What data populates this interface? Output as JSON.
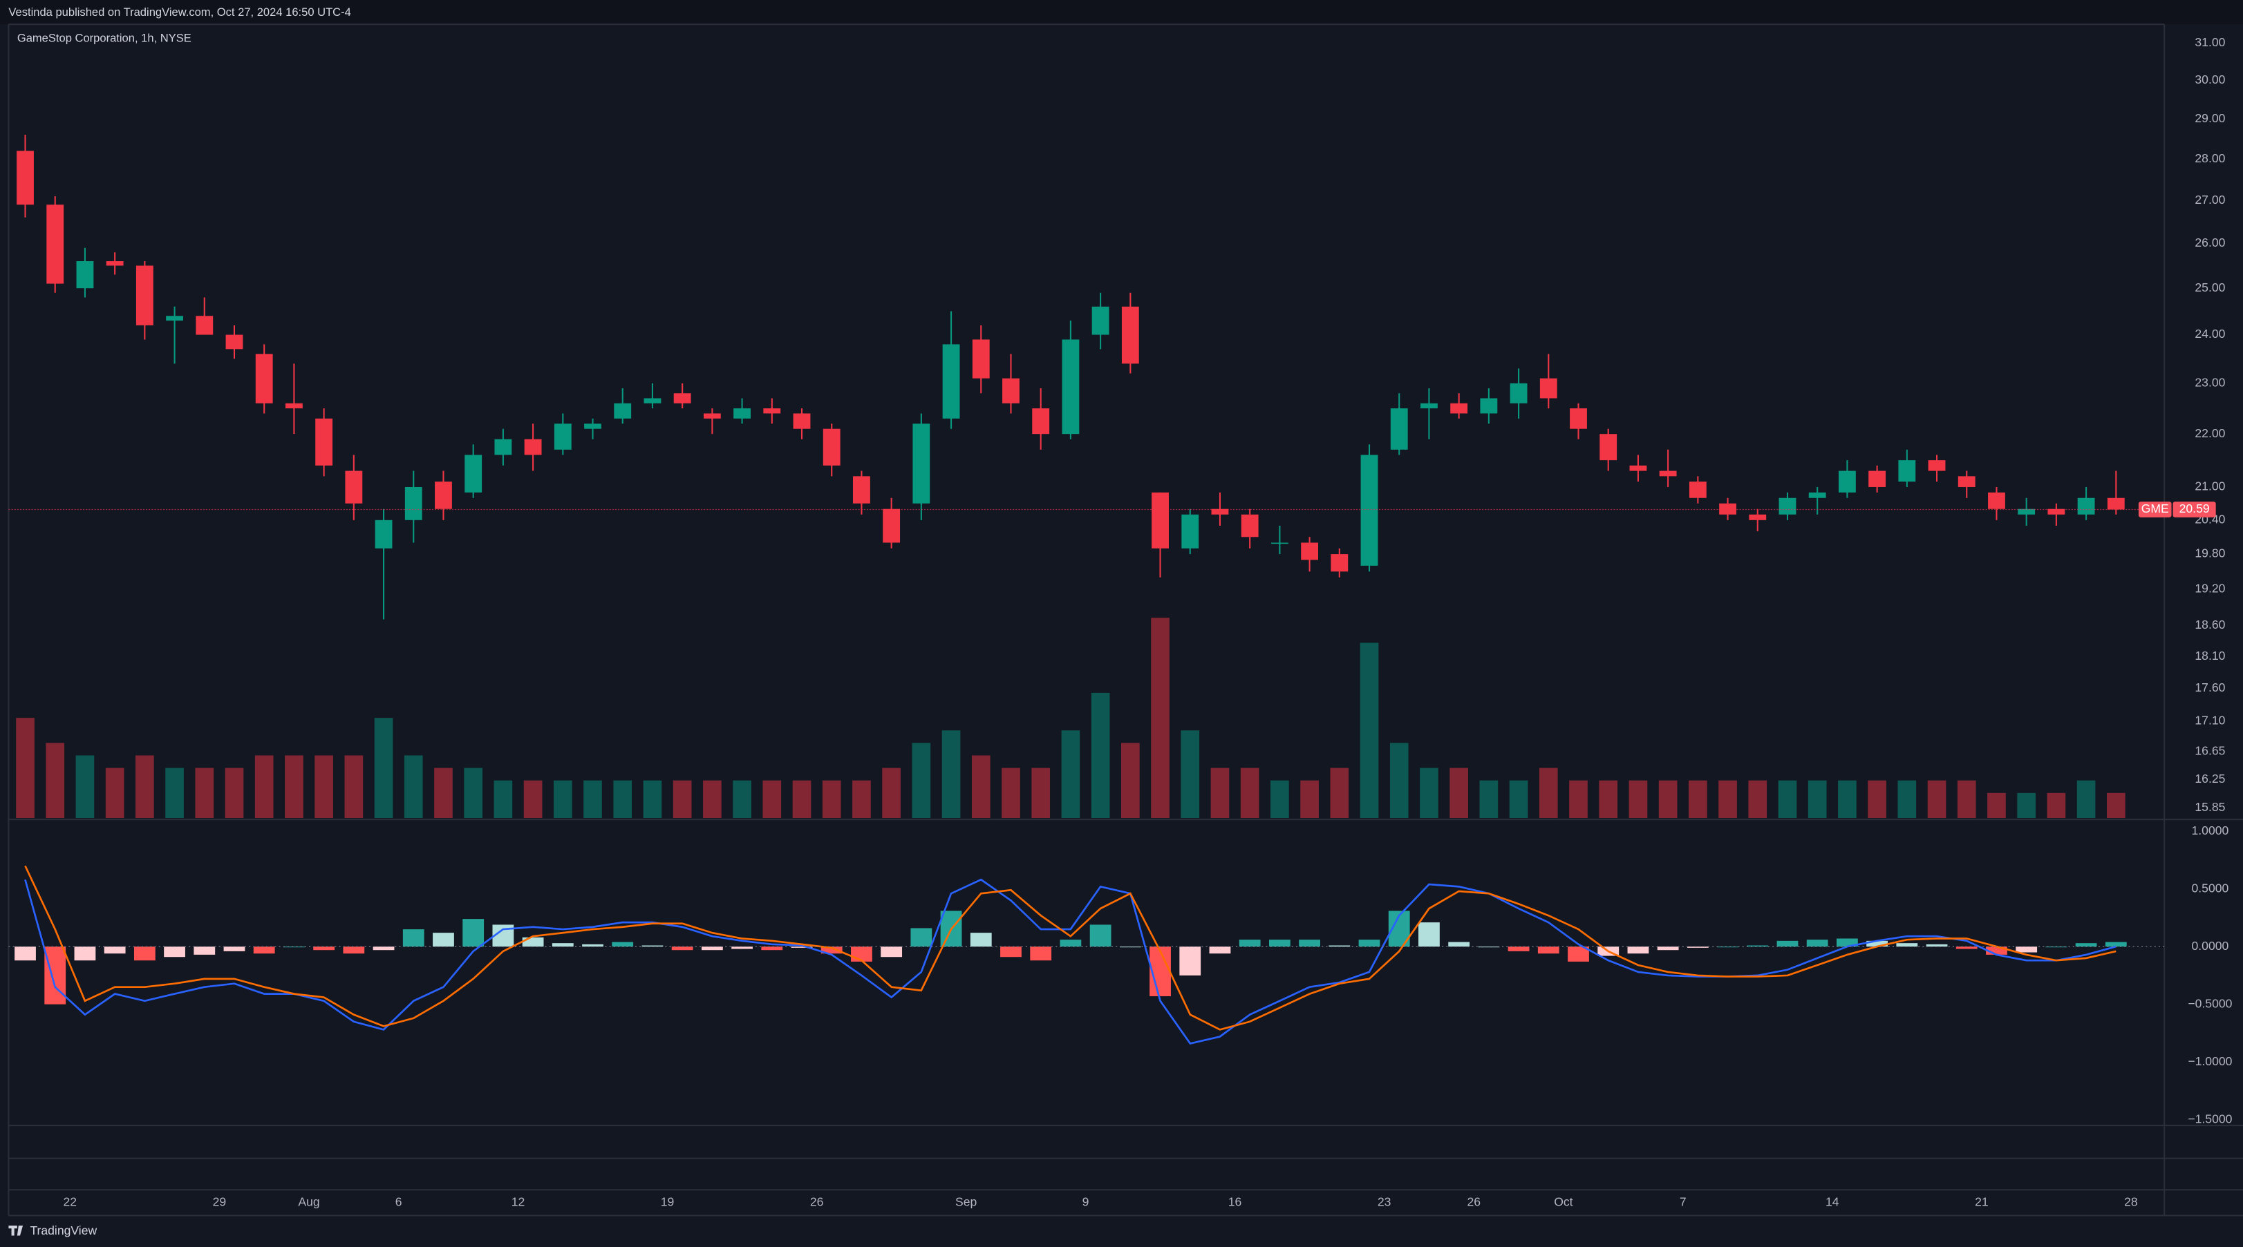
{
  "published": "Vestinda published on TradingView.com, Oct 27, 2024 16:50 UTC-4",
  "footer": "TradingView",
  "chart_data": {
    "type": "candlestick",
    "title": "GameStop Corporation, 1h, NYSE",
    "symbol": "GME",
    "log_scale": true,
    "grid": false,
    "up_color": "#089981",
    "down_color": "#f23645",
    "categories": [
      null,
      null,
      "22",
      null,
      null,
      null,
      null,
      "29",
      null,
      null,
      "Aug",
      null,
      null,
      "6",
      null,
      null,
      null,
      "12",
      null,
      null,
      null,
      null,
      "19",
      null,
      null,
      null,
      null,
      "26",
      null,
      null,
      null,
      null,
      "Sep",
      null,
      null,
      null,
      "9",
      null,
      null,
      null,
      null,
      "16",
      null,
      null,
      null,
      null,
      "23",
      null,
      null,
      "26",
      null,
      null,
      "Oct",
      null,
      null,
      null,
      "7",
      null,
      null,
      null,
      null,
      "14",
      null,
      null,
      null,
      null,
      "21",
      null,
      null,
      null,
      null,
      "28"
    ],
    "open": [
      28.2,
      26.9,
      25.0,
      25.6,
      25.5,
      24.3,
      24.4,
      24.0,
      23.6,
      22.6,
      22.3,
      21.3,
      19.9,
      20.4,
      21.1,
      20.9,
      21.6,
      21.9,
      21.7,
      22.1,
      22.3,
      22.6,
      22.8,
      22.4,
      22.3,
      22.5,
      22.4,
      22.1,
      21.2,
      20.6,
      20.7,
      22.3,
      23.9,
      23.1,
      22.5,
      22.0,
      24.0,
      24.6,
      20.9,
      19.9,
      20.6,
      20.5,
      20.0,
      20.0,
      19.8,
      19.6,
      21.7,
      22.5,
      22.6,
      22.4,
      22.6,
      23.1,
      22.5,
      22.0,
      21.4,
      21.3,
      21.1,
      20.7,
      20.5,
      20.5,
      20.8,
      20.9,
      21.3,
      21.1,
      21.5,
      21.2,
      20.9,
      20.5,
      20.6,
      20.5,
      20.8,
      null
    ],
    "high": [
      28.6,
      27.1,
      25.9,
      25.8,
      25.6,
      24.6,
      24.8,
      24.2,
      23.8,
      23.4,
      22.5,
      21.6,
      20.6,
      21.3,
      21.3,
      21.8,
      22.1,
      22.2,
      22.4,
      22.3,
      22.9,
      23.0,
      23.0,
      22.5,
      22.7,
      22.7,
      22.5,
      22.2,
      21.3,
      20.8,
      22.4,
      24.5,
      24.2,
      23.6,
      22.9,
      24.3,
      24.9,
      24.9,
      20.9,
      20.6,
      20.9,
      20.6,
      20.3,
      20.1,
      19.9,
      21.8,
      22.8,
      22.9,
      22.8,
      22.9,
      23.3,
      23.6,
      22.6,
      22.1,
      21.6,
      21.7,
      21.2,
      20.8,
      20.6,
      20.9,
      21.0,
      21.5,
      21.4,
      21.7,
      21.6,
      21.3,
      21.0,
      20.8,
      20.7,
      21.0,
      21.3,
      null
    ],
    "low": [
      26.6,
      24.9,
      24.8,
      25.3,
      23.9,
      23.4,
      24.1,
      23.5,
      22.4,
      22.0,
      21.2,
      20.4,
      18.7,
      20.0,
      20.4,
      20.8,
      21.4,
      21.3,
      21.6,
      21.9,
      22.2,
      22.5,
      22.5,
      22.0,
      22.2,
      22.2,
      21.9,
      21.2,
      20.5,
      19.9,
      20.4,
      22.1,
      22.8,
      22.4,
      21.7,
      21.9,
      23.7,
      23.2,
      19.4,
      19.8,
      20.3,
      19.9,
      19.8,
      19.5,
      19.4,
      19.5,
      21.6,
      21.9,
      22.3,
      22.2,
      22.3,
      22.5,
      21.9,
      21.3,
      21.1,
      21.0,
      20.7,
      20.4,
      20.2,
      20.4,
      20.5,
      20.8,
      20.9,
      21.0,
      21.1,
      20.8,
      20.4,
      20.3,
      20.3,
      20.4,
      20.5,
      null
    ],
    "close": [
      26.9,
      25.1,
      25.6,
      25.5,
      24.2,
      24.4,
      24.0,
      23.7,
      22.6,
      22.5,
      21.4,
      20.7,
      20.4,
      21.0,
      20.6,
      21.6,
      21.9,
      21.6,
      22.2,
      22.2,
      22.6,
      22.7,
      22.6,
      22.3,
      22.5,
      22.4,
      22.1,
      21.4,
      20.7,
      20.0,
      22.2,
      23.8,
      23.1,
      22.6,
      22.0,
      23.9,
      24.6,
      23.4,
      19.9,
      20.5,
      20.5,
      20.1,
      20.0,
      19.7,
      19.5,
      21.6,
      22.5,
      22.6,
      22.4,
      22.7,
      23.0,
      22.7,
      22.1,
      21.5,
      21.3,
      21.2,
      20.8,
      20.5,
      20.4,
      20.8,
      20.9,
      21.3,
      21.0,
      21.5,
      21.3,
      21.0,
      20.6,
      20.6,
      20.5,
      20.8,
      20.59,
      null
    ],
    "volume": [
      8,
      6,
      5,
      4,
      5,
      4,
      4,
      4,
      5,
      5,
      5,
      5,
      8,
      5,
      4,
      4,
      3,
      3,
      3,
      3,
      3,
      3,
      3,
      3,
      3,
      3,
      3,
      3,
      3,
      4,
      6,
      7,
      5,
      4,
      4,
      7,
      10,
      6,
      16,
      7,
      4,
      4,
      3,
      3,
      4,
      14,
      6,
      4,
      4,
      3,
      3,
      4,
      3,
      3,
      3,
      3,
      3,
      3,
      3,
      3,
      3,
      3,
      3,
      3,
      3,
      3,
      2,
      2,
      2,
      3,
      2,
      null
    ],
    "ylim": [
      15.71,
      31.51
    ],
    "yticks": [
      {
        "value": 31,
        "label": "31.00"
      },
      {
        "value": 30,
        "label": "30.00"
      },
      {
        "value": 29,
        "label": "29.00"
      },
      {
        "value": 28,
        "label": "28.00"
      },
      {
        "value": 27,
        "label": "27.00"
      },
      {
        "value": 26,
        "label": "26.00"
      },
      {
        "value": 25,
        "label": "25.00"
      },
      {
        "value": 24,
        "label": "24.00"
      },
      {
        "value": 23,
        "label": "23.00"
      },
      {
        "value": 22,
        "label": "22.00"
      },
      {
        "value": 21,
        "label": "21.00"
      },
      {
        "value": 20.4,
        "label": "20.40"
      },
      {
        "value": 19.8,
        "label": "19.80"
      },
      {
        "value": 19.2,
        "label": "19.20"
      },
      {
        "value": 18.6,
        "label": "18.60"
      },
      {
        "value": 18.1,
        "label": "18.10"
      },
      {
        "value": 17.6,
        "label": "17.60"
      },
      {
        "value": 17.1,
        "label": "17.10"
      },
      {
        "value": 16.65,
        "label": "16.65"
      },
      {
        "value": 16.25,
        "label": "16.25"
      },
      {
        "value": 15.85,
        "label": "15.85"
      }
    ],
    "indicator": {
      "type": "macd",
      "ylim": [
        -1.55,
        1.09
      ],
      "yticks": [
        {
          "value": 1,
          "label": "1.0000"
        },
        {
          "value": 0.5,
          "label": "0.5000"
        },
        {
          "value": 0,
          "label": "0.0000"
        },
        {
          "value": -0.5,
          "label": "−0.5000"
        },
        {
          "value": -1,
          "label": "−1.0000"
        },
        {
          "value": -1.5,
          "label": "−1.5000"
        }
      ],
      "series": [
        {
          "color": "#2962ff",
          "values": [
            0.58,
            -0.35,
            -0.59,
            -0.41,
            -0.47,
            -0.41,
            -0.35,
            -0.32,
            -0.41,
            -0.41,
            -0.47,
            -0.65,
            -0.72,
            -0.47,
            -0.35,
            -0.04,
            0.15,
            0.17,
            0.15,
            0.17,
            0.21,
            0.21,
            0.17,
            0.09,
            0.05,
            0.02,
            0.01,
            -0.07,
            -0.25,
            -0.44,
            -0.22,
            0.46,
            0.58,
            0.4,
            0.15,
            0.15,
            0.52,
            0.46,
            -0.47,
            -0.84,
            -0.78,
            -0.59,
            -0.47,
            -0.35,
            -0.31,
            -0.22,
            0.27,
            0.54,
            0.52,
            0.46,
            0.33,
            0.21,
            0.02,
            -0.12,
            -0.22,
            -0.25,
            -0.26,
            -0.26,
            -0.25,
            -0.2,
            -0.1,
            0.0,
            0.05,
            0.09,
            0.09,
            0.05,
            -0.07,
            -0.12,
            -0.12,
            -0.07,
            0.0,
            null
          ]
        },
        {
          "color": "#ff6d00",
          "values": [
            0.7,
            0.15,
            -0.47,
            -0.35,
            -0.35,
            -0.32,
            -0.28,
            -0.28,
            -0.35,
            -0.41,
            -0.44,
            -0.59,
            -0.69,
            -0.62,
            -0.47,
            -0.28,
            -0.04,
            0.09,
            0.12,
            0.15,
            0.17,
            0.2,
            0.2,
            0.12,
            0.07,
            0.05,
            0.02,
            -0.01,
            -0.12,
            -0.35,
            -0.38,
            0.15,
            0.46,
            0.49,
            0.27,
            0.09,
            0.33,
            0.46,
            -0.04,
            -0.59,
            -0.72,
            -0.65,
            -0.53,
            -0.41,
            -0.32,
            -0.28,
            -0.04,
            0.33,
            0.48,
            0.46,
            0.37,
            0.27,
            0.15,
            -0.04,
            -0.16,
            -0.22,
            -0.25,
            -0.26,
            -0.26,
            -0.25,
            -0.16,
            -0.07,
            0.0,
            0.06,
            0.07,
            0.07,
            0.0,
            -0.07,
            -0.12,
            -0.1,
            -0.04,
            null
          ]
        }
      ],
      "histogram": [
        -0.12,
        -0.5,
        -0.12,
        -0.06,
        -0.12,
        -0.09,
        -0.07,
        -0.04,
        -0.06,
        0,
        -0.03,
        -0.06,
        -0.03,
        0.15,
        0.12,
        0.24,
        0.19,
        0.08,
        0.03,
        0.02,
        0.04,
        0.01,
        -0.03,
        -0.03,
        -0.02,
        -0.03,
        -0.01,
        -0.06,
        -0.13,
        -0.09,
        0.16,
        0.31,
        0.12,
        -0.09,
        -0.12,
        0.06,
        0.19,
        0,
        -0.43,
        -0.25,
        -0.06,
        0.06,
        0.06,
        0.06,
        0.01,
        0.06,
        0.31,
        0.21,
        0.04,
        0,
        -0.04,
        -0.06,
        -0.13,
        -0.08,
        -0.06,
        -0.03,
        -0.01,
        0,
        0.01,
        0.05,
        0.06,
        0.07,
        0.05,
        0.03,
        0.02,
        -0.02,
        -0.07,
        -0.05,
        0,
        0.03,
        0.04,
        null
      ]
    }
  }
}
